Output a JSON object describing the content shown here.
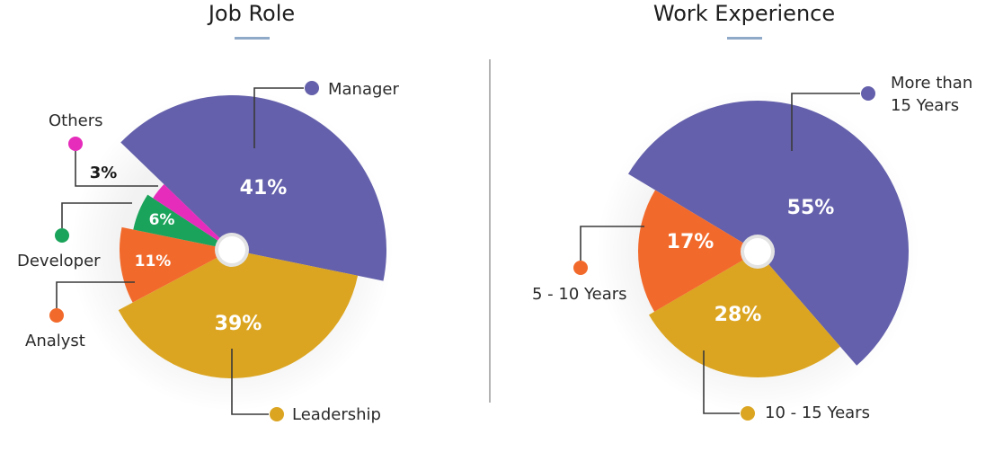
{
  "chart_data": [
    {
      "type": "pie",
      "title": "Job Role",
      "slices": [
        {
          "label": "Manager",
          "value": 41,
          "display": "41%",
          "color": "#6460ab"
        },
        {
          "label": "Leadership",
          "value": 39,
          "display": "39%",
          "color": "#dba521"
        },
        {
          "label": "Analyst",
          "value": 11,
          "display": "11%",
          "color": "#f26a2b"
        },
        {
          "label": "Developer",
          "value": 6,
          "display": "6%",
          "color": "#1aa35a"
        },
        {
          "label": "Others",
          "value": 3,
          "display": "3%",
          "color": "#e62cbb"
        }
      ]
    },
    {
      "type": "pie",
      "title": "Work Experience",
      "slices": [
        {
          "label": "More than 15 Years",
          "label_lines": [
            "More than",
            "15 Years"
          ],
          "value": 55,
          "display": "55%",
          "color": "#6460ab"
        },
        {
          "label": "10 - 15 Years",
          "value": 28,
          "display": "28%",
          "color": "#dba521"
        },
        {
          "label": "5 - 10 Years",
          "value": 17,
          "display": "17%",
          "color": "#f26a2b"
        }
      ]
    }
  ]
}
